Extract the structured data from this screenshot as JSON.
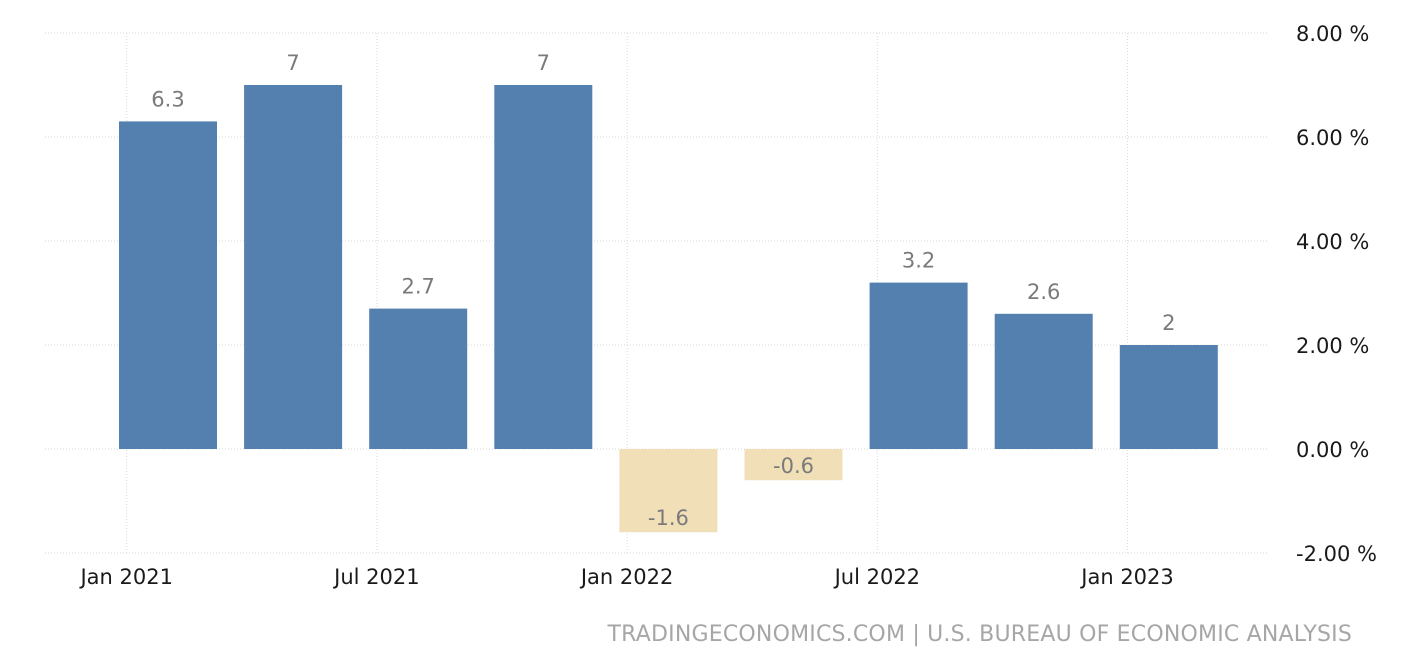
{
  "chart_data": {
    "type": "bar",
    "x": [
      "2021-Q1",
      "2021-Q2",
      "2021-Q3",
      "2021-Q4",
      "2022-Q1",
      "2022-Q2",
      "2022-Q3",
      "2022-Q4",
      "2023-Q1"
    ],
    "values": [
      6.3,
      7,
      2.7,
      7,
      -1.6,
      -0.6,
      3.2,
      2.6,
      2
    ],
    "value_labels": [
      "6.3",
      "7",
      "2.7",
      "7",
      "-1.6",
      "-0.6",
      "3.2",
      "2.6",
      "2"
    ],
    "x_ticks": [
      {
        "label": "Jan 2021",
        "position": -0.33
      },
      {
        "label": "Jul 2021",
        "position": 1.67
      },
      {
        "label": "Jan 2022",
        "position": 3.67
      },
      {
        "label": "Jul 2022",
        "position": 5.67
      },
      {
        "label": "Jan 2023",
        "position": 7.67
      }
    ],
    "y_ticks": [
      {
        "value": 8,
        "label": "8.00 %"
      },
      {
        "value": 6,
        "label": "6.00 %"
      },
      {
        "value": 4,
        "label": "4.00 %"
      },
      {
        "value": 2,
        "label": "2.00 %"
      },
      {
        "value": 0,
        "label": "0.00 %"
      },
      {
        "value": -2,
        "label": "-2.00 %"
      }
    ],
    "ylim": [
      -2,
      8
    ],
    "y_axis_side": "right",
    "grid": true,
    "colors": {
      "positive": "#5480b0",
      "negative": "#f1dfb8",
      "grid": "#d9d9d9",
      "value_label": "#7a7a7a",
      "tick_label": "#1a1a1a"
    }
  },
  "source": "TRADINGECONOMICS.COM | U.S. BUREAU OF ECONOMIC ANALYSIS"
}
